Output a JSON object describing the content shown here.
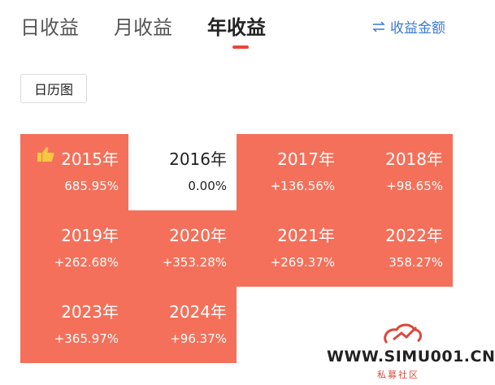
{
  "tabs": [
    "日收益",
    "月收益",
    "年收益"
  ],
  "toggle": {
    "label": "收益金额"
  },
  "button": {
    "label": "日历图"
  },
  "cells": [
    {
      "year": "2015年",
      "return": "685.95%",
      "highlight": true
    },
    {
      "year": "2016年",
      "return": "0.00%",
      "highlight": false
    },
    {
      "year": "2017年",
      "return": "+136.56%",
      "highlight": true
    },
    {
      "year": "2018年",
      "return": "+98.65%",
      "highlight": true
    },
    {
      "year": "2019年",
      "return": "+262.68%",
      "highlight": true
    },
    {
      "year": "2020年",
      "return": "+353.28%",
      "highlight": true
    },
    {
      "year": "2021年",
      "return": "+269.37%",
      "highlight": true
    },
    {
      "year": "2022年",
      "return": "358.27%",
      "highlight": true
    },
    {
      "year": "2023年",
      "return": "+365.97%",
      "highlight": true
    },
    {
      "year": "2024年",
      "return": "+96.37%",
      "highlight": true
    }
  ],
  "watermark": {
    "url": "WWW.SIMU001.CN",
    "name": "私募社区"
  }
}
